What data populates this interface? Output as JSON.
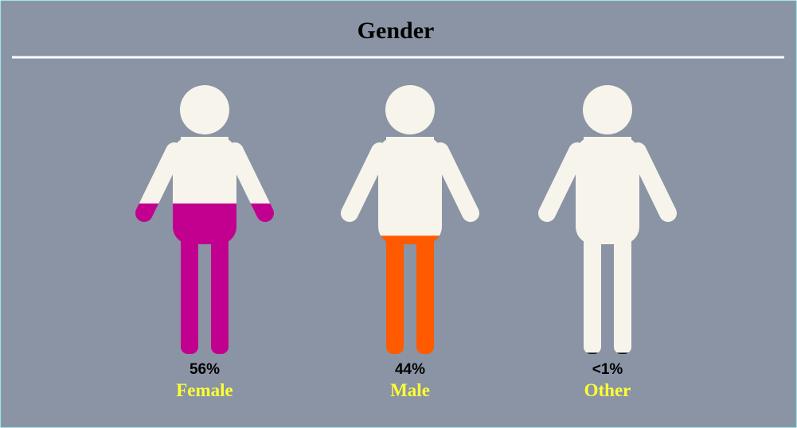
{
  "chart_data": {
    "type": "pictograph",
    "title": "Gender",
    "categories": [
      "Female",
      "Male",
      "Other"
    ],
    "values": [
      56,
      44,
      0.5
    ],
    "value_labels": [
      "56%",
      "44%",
      "<1%"
    ],
    "colors": [
      "#c2008f",
      "#ff5a00",
      "#111111"
    ]
  }
}
